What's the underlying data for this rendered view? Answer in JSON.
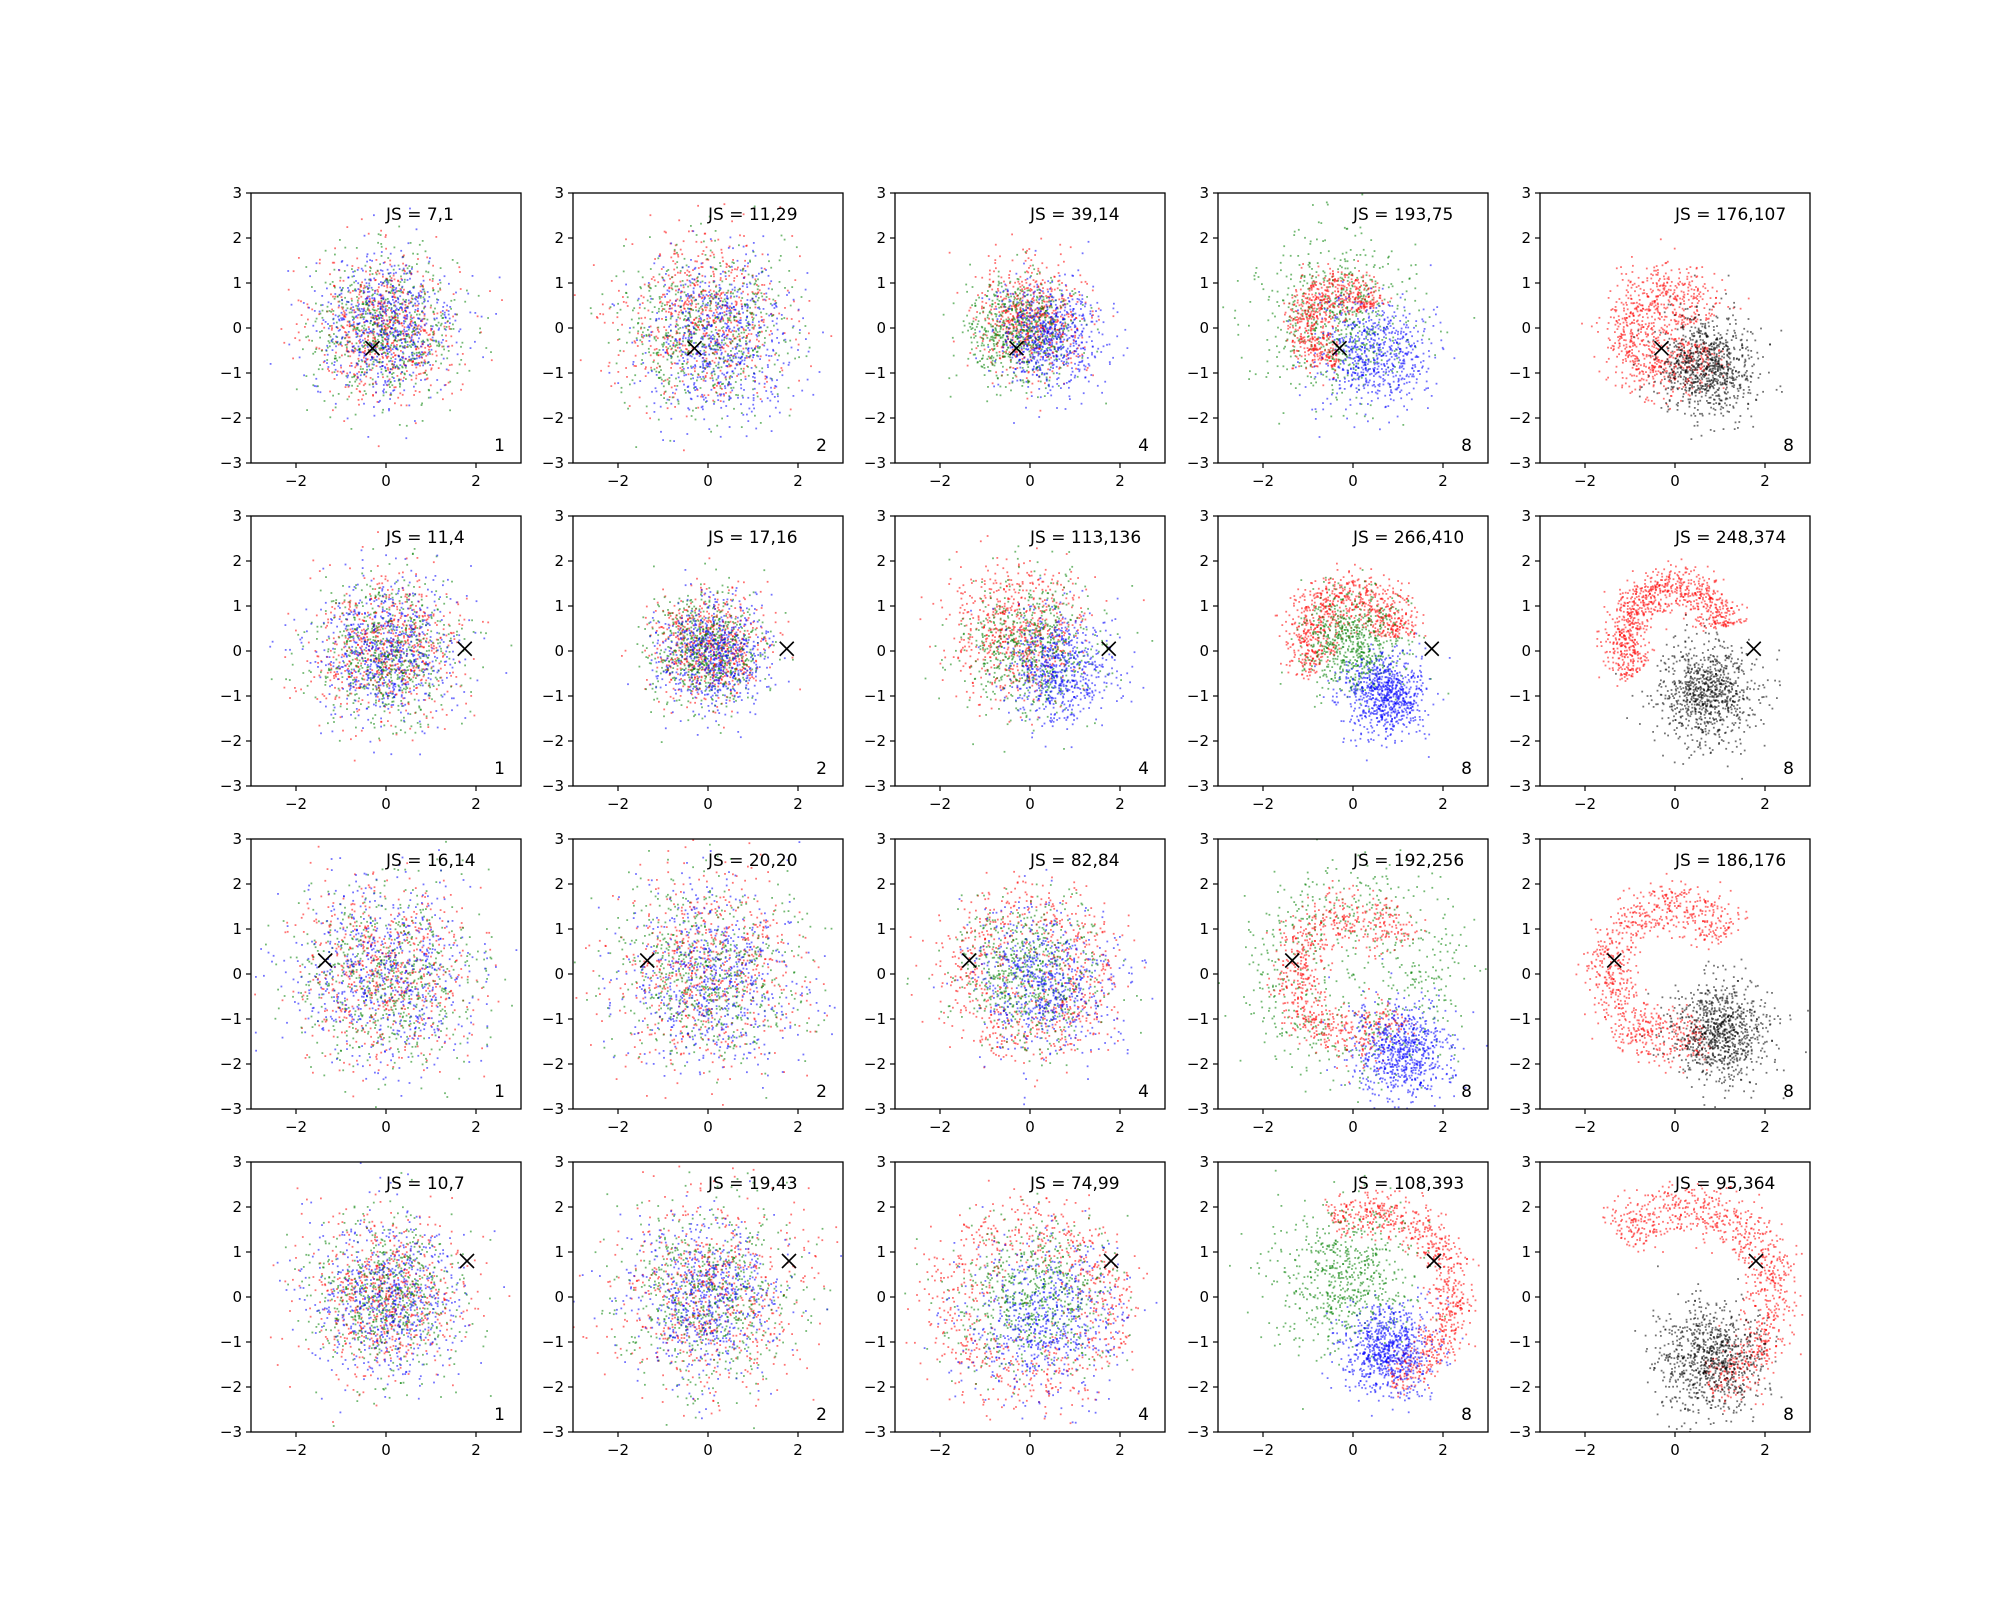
{
  "chart_data": {
    "type": "scatter",
    "layout": {
      "rows": 4,
      "cols": 5
    },
    "xlim": [
      -3,
      3
    ],
    "ylim": [
      -3,
      3
    ],
    "xticks": [
      -2,
      0,
      2
    ],
    "yticks": [
      -3,
      -2,
      -1,
      0,
      1,
      2,
      3
    ],
    "xtick_labels": [
      "−2",
      "0",
      "2"
    ],
    "ytick_labels": [
      "−3",
      "−2",
      "−1",
      "0",
      "1",
      "2",
      "3"
    ],
    "grid": false,
    "series_colors": {
      "red": "#ff0000",
      "green": "#008000",
      "blue": "#0000ff",
      "black": "#000000"
    },
    "panels": [
      {
        "row": 0,
        "col": 0,
        "js_label": "JS = 7,1",
        "corner_label": "1",
        "marker": [
          -0.3,
          -0.45
        ],
        "clusters": [
          {
            "color": "red",
            "center": [
              0,
              0
            ],
            "spread": 0.8,
            "n": 650
          },
          {
            "color": "green",
            "center": [
              0,
              0
            ],
            "spread": 0.8,
            "n": 650
          },
          {
            "color": "blue",
            "center": [
              0,
              0
            ],
            "spread": 0.8,
            "n": 650
          }
        ]
      },
      {
        "row": 0,
        "col": 1,
        "js_label": "JS = 11,29",
        "corner_label": "2",
        "marker": [
          -0.3,
          -0.45
        ],
        "clusters": [
          {
            "color": "red",
            "center": [
              -0.1,
              0.2
            ],
            "spread": 0.9,
            "n": 650
          },
          {
            "color": "green",
            "center": [
              -0.1,
              0
            ],
            "spread": 0.9,
            "n": 650
          },
          {
            "color": "blue",
            "center": [
              0.3,
              -0.2
            ],
            "spread": 0.85,
            "n": 650
          }
        ]
      },
      {
        "row": 0,
        "col": 2,
        "js_label": "JS = 39,14",
        "corner_label": "4",
        "marker": [
          -0.3,
          -0.45
        ],
        "clusters": [
          {
            "color": "red",
            "center": [
              0,
              0.2
            ],
            "spread": 0.6,
            "n": 650
          },
          {
            "color": "green",
            "center": [
              -0.2,
              -0.1
            ],
            "spread": 0.6,
            "n": 650
          },
          {
            "color": "blue",
            "center": [
              0.4,
              -0.2
            ],
            "spread": 0.6,
            "n": 650
          }
        ]
      },
      {
        "row": 0,
        "col": 3,
        "js_label": "JS = 193,75",
        "corner_label": "8",
        "marker": [
          -0.3,
          -0.45
        ],
        "clusters": [
          {
            "color": "green",
            "center": [
              -0.4,
              0.2
            ],
            "spread": 0.85,
            "n": 650
          },
          {
            "color": "red",
            "center": [
              -0.3,
              0.1
            ],
            "ring": 0.8,
            "width": 0.25,
            "arc": [
              0.4,
              4.7
            ],
            "n": 650
          },
          {
            "color": "blue",
            "center": [
              0.5,
              -0.6
            ],
            "spread": 0.6,
            "n": 650
          }
        ]
      },
      {
        "row": 0,
        "col": 4,
        "js_label": "JS = 176,107",
        "corner_label": "8",
        "marker": [
          -0.3,
          -0.45
        ],
        "clusters": [
          {
            "color": "red",
            "center": [
              -0.2,
              -0.1
            ],
            "ring": 0.9,
            "width": 0.35,
            "arc": [
              0.3,
              6.0
            ],
            "n": 900
          },
          {
            "color": "black",
            "center": [
              0.7,
              -0.9
            ],
            "spread": 0.55,
            "n": 900
          }
        ]
      },
      {
        "row": 1,
        "col": 0,
        "js_label": "JS = 11,4",
        "corner_label": "1",
        "marker": [
          1.75,
          0.05
        ],
        "clusters": [
          {
            "color": "red",
            "center": [
              0,
              0
            ],
            "spread": 0.8,
            "n": 650
          },
          {
            "color": "green",
            "center": [
              0,
              0
            ],
            "spread": 0.8,
            "n": 650
          },
          {
            "color": "blue",
            "center": [
              0,
              0
            ],
            "spread": 0.8,
            "n": 650
          }
        ]
      },
      {
        "row": 1,
        "col": 1,
        "js_label": "JS = 17,16",
        "corner_label": "2",
        "marker": [
          1.75,
          0.05
        ],
        "clusters": [
          {
            "color": "red",
            "center": [
              0,
              0.1
            ],
            "spread": 0.6,
            "n": 650
          },
          {
            "color": "green",
            "center": [
              0,
              0
            ],
            "spread": 0.6,
            "n": 650
          },
          {
            "color": "blue",
            "center": [
              0.1,
              -0.1
            ],
            "spread": 0.6,
            "n": 650
          }
        ]
      },
      {
        "row": 1,
        "col": 2,
        "js_label": "JS = 113,136",
        "corner_label": "4",
        "marker": [
          1.75,
          0.05
        ],
        "clusters": [
          {
            "color": "red",
            "center": [
              -0.3,
              0.4
            ],
            "spread": 0.75,
            "n": 650
          },
          {
            "color": "green",
            "center": [
              0,
              0
            ],
            "spread": 0.75,
            "n": 650
          },
          {
            "color": "blue",
            "center": [
              0.6,
              -0.4
            ],
            "spread": 0.6,
            "n": 650
          }
        ]
      },
      {
        "row": 1,
        "col": 3,
        "js_label": "JS = 266,410",
        "corner_label": "8",
        "marker": [
          1.75,
          0.05
        ],
        "clusters": [
          {
            "color": "red",
            "center": [
              0,
              0.3
            ],
            "ring": 1.0,
            "width": 0.3,
            "arc": [
              0.0,
              3.9
            ],
            "n": 800
          },
          {
            "color": "green",
            "center": [
              0,
              0.2
            ],
            "spread": 0.55,
            "n": 650
          },
          {
            "color": "blue",
            "center": [
              0.7,
              -1.0
            ],
            "spread": 0.45,
            "n": 800
          }
        ]
      },
      {
        "row": 1,
        "col": 4,
        "js_label": "JS = 248,374",
        "corner_label": "8",
        "marker": [
          1.75,
          0.05
        ],
        "clusters": [
          {
            "color": "red",
            "center": [
              0,
              0.3
            ],
            "ring": 1.15,
            "width": 0.25,
            "arc": [
              0.2,
              3.9
            ],
            "n": 900
          },
          {
            "color": "black",
            "center": [
              0.7,
              -0.9
            ],
            "spread": 0.55,
            "n": 900
          }
        ]
      },
      {
        "row": 2,
        "col": 0,
        "js_label": "JS = 16,14",
        "corner_label": "1",
        "marker": [
          -1.35,
          0.3
        ],
        "clusters": [
          {
            "color": "red",
            "center": [
              0,
              0
            ],
            "spread": 1.0,
            "n": 650
          },
          {
            "color": "green",
            "center": [
              0,
              0
            ],
            "spread": 1.0,
            "n": 650
          },
          {
            "color": "blue",
            "center": [
              0,
              0
            ],
            "spread": 1.0,
            "n": 650
          }
        ]
      },
      {
        "row": 2,
        "col": 1,
        "js_label": "JS = 20,20",
        "corner_label": "2",
        "marker": [
          -1.35,
          0.3
        ],
        "clusters": [
          {
            "color": "red",
            "center": [
              0,
              0
            ],
            "spread": 1.05,
            "n": 650
          },
          {
            "color": "green",
            "center": [
              0,
              0
            ],
            "spread": 1.0,
            "n": 650
          },
          {
            "color": "blue",
            "center": [
              0.1,
              -0.1
            ],
            "spread": 1.0,
            "n": 650
          }
        ]
      },
      {
        "row": 2,
        "col": 2,
        "js_label": "JS = 82,84",
        "corner_label": "4",
        "marker": [
          -1.35,
          0.3
        ],
        "clusters": [
          {
            "color": "red",
            "center": [
              0,
              0
            ],
            "ring": 1.4,
            "width": 0.45,
            "arc": [
              0,
              6.283
            ],
            "n": 750
          },
          {
            "color": "green",
            "center": [
              0,
              0
            ],
            "spread": 0.8,
            "n": 650
          },
          {
            "color": "blue",
            "center": [
              0.3,
              -0.2
            ],
            "spread": 0.8,
            "n": 650
          }
        ]
      },
      {
        "row": 2,
        "col": 3,
        "js_label": "JS = 192,256",
        "corner_label": "8",
        "marker": [
          -1.35,
          0.3
        ],
        "clusters": [
          {
            "color": "green",
            "center": [
              0,
              0
            ],
            "ring": 1.7,
            "width": 0.6,
            "arc": [
              0,
              6.283
            ],
            "n": 650
          },
          {
            "color": "red",
            "center": [
              0,
              0
            ],
            "ring": 1.35,
            "width": 0.3,
            "arc": [
              0.5,
              5.6
            ],
            "n": 750
          },
          {
            "color": "blue",
            "center": [
              1.1,
              -1.7
            ],
            "spread": 0.55,
            "n": 750
          }
        ]
      },
      {
        "row": 2,
        "col": 4,
        "js_label": "JS = 186,176",
        "corner_label": "8",
        "marker": [
          -1.35,
          0.3
        ],
        "clusters": [
          {
            "color": "red",
            "center": [
              0,
              0
            ],
            "ring": 1.5,
            "width": 0.3,
            "arc": [
              0.6,
              5.2
            ],
            "n": 900
          },
          {
            "color": "black",
            "center": [
              1.0,
              -1.3
            ],
            "spread": 0.55,
            "n": 900
          }
        ]
      },
      {
        "row": 3,
        "col": 0,
        "js_label": "JS = 10,7",
        "corner_label": "1",
        "marker": [
          1.8,
          0.8
        ],
        "clusters": [
          {
            "color": "red",
            "center": [
              0,
              0
            ],
            "spread": 0.85,
            "n": 650
          },
          {
            "color": "green",
            "center": [
              0,
              0
            ],
            "spread": 0.85,
            "n": 650
          },
          {
            "color": "blue",
            "center": [
              0,
              0
            ],
            "spread": 0.85,
            "n": 650
          }
        ]
      },
      {
        "row": 3,
        "col": 1,
        "js_label": "JS = 19,43",
        "corner_label": "2",
        "marker": [
          1.8,
          0.8
        ],
        "clusters": [
          {
            "color": "red",
            "center": [
              0,
              0
            ],
            "spread": 1.05,
            "n": 650
          },
          {
            "color": "green",
            "center": [
              0,
              0
            ],
            "spread": 1.0,
            "n": 650
          },
          {
            "color": "blue",
            "center": [
              0,
              0
            ],
            "spread": 0.85,
            "n": 650
          }
        ]
      },
      {
        "row": 3,
        "col": 2,
        "js_label": "JS = 74,99",
        "corner_label": "4",
        "marker": [
          1.8,
          0.8
        ],
        "clusters": [
          {
            "color": "red",
            "center": [
              0,
              -0.2
            ],
            "ring": 1.75,
            "width": 0.45,
            "arc": [
              0,
              6.283
            ],
            "n": 750
          },
          {
            "color": "green",
            "center": [
              0,
              0
            ],
            "spread": 0.85,
            "n": 650
          },
          {
            "color": "blue",
            "center": [
              0.3,
              -0.5
            ],
            "spread": 0.85,
            "n": 650
          }
        ]
      },
      {
        "row": 3,
        "col": 3,
        "js_label": "JS = 108,393",
        "corner_label": "8",
        "marker": [
          1.8,
          0.8
        ],
        "clusters": [
          {
            "color": "red",
            "center": [
              0.3,
              0
            ],
            "ring": 1.9,
            "width": 0.25,
            "arc": [
              -1.3,
              2.0
            ],
            "n": 800
          },
          {
            "color": "green",
            "center": [
              -0.2,
              0.4
            ],
            "spread": 0.8,
            "n": 650
          },
          {
            "color": "blue",
            "center": [
              0.8,
              -1.2
            ],
            "spread": 0.5,
            "n": 800
          }
        ]
      },
      {
        "row": 3,
        "col": 4,
        "js_label": "JS = 95,364",
        "corner_label": "8",
        "marker": [
          1.8,
          0.8
        ],
        "clusters": [
          {
            "color": "red",
            "center": [
              0.2,
              0
            ],
            "ring": 2.0,
            "width": 0.3,
            "arc": [
              -1.3,
              2.4
            ],
            "n": 950
          },
          {
            "color": "black",
            "center": [
              0.8,
              -1.4
            ],
            "spread": 0.6,
            "n": 900
          }
        ]
      }
    ]
  }
}
